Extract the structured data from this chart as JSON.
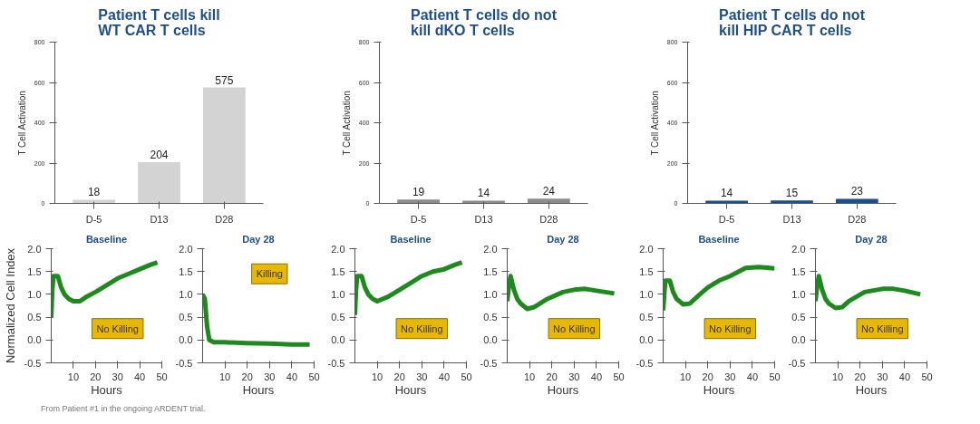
{
  "chart_data": [
    {
      "type": "bar",
      "title": "Patient T cells kill WT CAR T cells",
      "ylabel": "T Cell Activation",
      "categories": [
        "D-5",
        "D13",
        "D28"
      ],
      "values": [
        18,
        204,
        575
      ],
      "color": "#d3d3d3",
      "ylim": [
        0,
        800
      ],
      "yticks": [
        0,
        200,
        400,
        600,
        800
      ],
      "data_labels": true
    },
    {
      "type": "bar",
      "title": "Patient T cells do not kill dKO T cells",
      "ylabel": "T Cell Activation",
      "categories": [
        "D-5",
        "D13",
        "D28"
      ],
      "values": [
        19,
        14,
        24
      ],
      "color": "#8c8c8c",
      "ylim": [
        0,
        800
      ],
      "yticks": [
        0,
        200,
        400,
        600,
        800
      ],
      "data_labels": true
    },
    {
      "type": "bar",
      "title": "Patient T cells do not kill HIP CAR T cells",
      "ylabel": "T Cell Activation",
      "categories": [
        "D-5",
        "D13",
        "D28"
      ],
      "values": [
        14,
        15,
        23
      ],
      "color": "#1f4e8c",
      "ylim": [
        0,
        800
      ],
      "yticks": [
        0,
        200,
        400,
        600,
        800
      ],
      "data_labels": true
    },
    {
      "type": "line",
      "title": "Baseline",
      "xlabel": "Hours",
      "ylabel": "Normalized Cell Index",
      "color": "#1e8a1e",
      "x": [
        0,
        0.5,
        1,
        3,
        4.5,
        6,
        8,
        10,
        13,
        16,
        20,
        25,
        30,
        35,
        40,
        45,
        48
      ],
      "values": [
        0.5,
        1.1,
        1.4,
        1.4,
        1.15,
        1.0,
        0.9,
        0.85,
        0.85,
        0.95,
        1.05,
        1.2,
        1.35,
        1.45,
        1.55,
        1.65,
        1.7
      ],
      "xlim": [
        0,
        50
      ],
      "ylim": [
        -0.5,
        2.0
      ],
      "xticks": [
        10,
        20,
        30,
        40,
        50
      ],
      "yticks": [
        {
          "value": -0.5,
          "label": "-0.5"
        },
        {
          "value": 0,
          "label": "0.0"
        },
        {
          "value": 0.5,
          "label": "0.5"
        },
        {
          "value": 1,
          "label": "1.0"
        },
        {
          "value": 1.5,
          "label": "1.5"
        },
        {
          "value": 2,
          "label": "2.0"
        }
      ],
      "annotations": [
        "No Killing",
        "From Patient #1 in the ongoing ARDENT trial."
      ]
    },
    {
      "type": "line",
      "title": "Day 28",
      "xlabel": "Hours",
      "color": "#1e8a1e",
      "x": [
        0,
        1,
        2,
        3,
        5,
        10,
        20,
        30,
        40,
        48
      ],
      "values": [
        1.0,
        0.9,
        0.3,
        0.0,
        -0.05,
        -0.05,
        -0.07,
        -0.08,
        -0.1,
        -0.1
      ],
      "xlim": [
        0,
        50
      ],
      "ylim": [
        -0.5,
        2.0
      ],
      "xticks": [
        10,
        20,
        30,
        40,
        50
      ],
      "yticks": [
        {
          "value": -0.5,
          "label": "-0.5"
        },
        {
          "value": 0,
          "label": "0.0"
        },
        {
          "value": 0.5,
          "label": "0.5"
        },
        {
          "value": 1,
          "label": "1.0"
        },
        {
          "value": 1.5,
          "label": "1.5"
        },
        {
          "value": 2,
          "label": "2.0"
        }
      ],
      "annotations": [
        "Killing"
      ]
    },
    {
      "type": "line",
      "title": "Baseline",
      "xlabel": "Hours",
      "color": "#1e8a1e",
      "x": [
        0,
        0.5,
        1,
        3,
        4.5,
        6,
        8,
        10,
        15,
        20,
        25,
        30,
        35,
        40,
        45,
        48
      ],
      "values": [
        0.55,
        1.1,
        1.4,
        1.4,
        1.15,
        1.0,
        0.9,
        0.85,
        0.95,
        1.1,
        1.25,
        1.4,
        1.5,
        1.55,
        1.65,
        1.7
      ],
      "xlim": [
        0,
        50
      ],
      "ylim": [
        -0.5,
        2.0
      ],
      "xticks": [
        10,
        20,
        30,
        40,
        50
      ],
      "yticks": [
        {
          "value": -0.5,
          "label": "-0.5"
        },
        {
          "value": 0,
          "label": "0.0"
        },
        {
          "value": 0.5,
          "label": "0.5"
        },
        {
          "value": 1,
          "label": "1.0"
        },
        {
          "value": 1.5,
          "label": "1.5"
        },
        {
          "value": 2,
          "label": "2.0"
        }
      ],
      "annotations": [
        "No Killing"
      ]
    },
    {
      "type": "line",
      "title": "Day 28",
      "xlabel": "Hours",
      "color": "#1e8a1e",
      "x": [
        0,
        0.8,
        1.5,
        3,
        4.5,
        6,
        9,
        12,
        18,
        25,
        30,
        35,
        40,
        48
      ],
      "values": [
        0.85,
        1.2,
        1.4,
        1.1,
        0.9,
        0.8,
        0.68,
        0.72,
        0.9,
        1.05,
        1.1,
        1.12,
        1.08,
        1.02
      ],
      "xlim": [
        0,
        50
      ],
      "ylim": [
        -0.5,
        2.0
      ],
      "xticks": [
        10,
        20,
        30,
        40,
        50
      ],
      "yticks": [
        {
          "value": -0.5,
          "label": "-0.5"
        },
        {
          "value": 0,
          "label": "0.0"
        },
        {
          "value": 0.5,
          "label": "0.5"
        },
        {
          "value": 1,
          "label": "1.0"
        },
        {
          "value": 1.5,
          "label": "1.5"
        },
        {
          "value": 2,
          "label": "2.0"
        }
      ],
      "annotations": [
        "No Killing"
      ]
    },
    {
      "type": "line",
      "title": "Baseline",
      "xlabel": "Hours",
      "color": "#1e8a1e",
      "x": [
        0,
        0.5,
        1,
        3,
        4.5,
        6,
        9,
        12,
        16,
        20,
        25,
        30,
        37,
        43,
        50
      ],
      "values": [
        0.65,
        1.0,
        1.3,
        1.3,
        1.05,
        0.9,
        0.78,
        0.8,
        0.98,
        1.15,
        1.3,
        1.4,
        1.58,
        1.6,
        1.57
      ],
      "xlim": [
        0,
        50
      ],
      "ylim": [
        -0.5,
        2.0
      ],
      "xticks": [
        10,
        20,
        30,
        40,
        50
      ],
      "yticks": [
        {
          "value": -0.5,
          "label": "-0.5"
        },
        {
          "value": 0,
          "label": "0.0"
        },
        {
          "value": 0.5,
          "label": "0.5"
        },
        {
          "value": 1,
          "label": "1.0"
        },
        {
          "value": 1.5,
          "label": "1.5"
        },
        {
          "value": 2,
          "label": "2.0"
        }
      ],
      "annotations": [
        "No Killing"
      ]
    },
    {
      "type": "line",
      "title": "Day 28",
      "xlabel": "Hours",
      "color": "#1e8a1e",
      "x": [
        0,
        0.8,
        1.5,
        3,
        4.5,
        6,
        9,
        12,
        15,
        22,
        30,
        35,
        40,
        47
      ],
      "values": [
        0.85,
        1.2,
        1.4,
        1.1,
        0.9,
        0.8,
        0.7,
        0.72,
        0.85,
        1.05,
        1.12,
        1.12,
        1.08,
        1.0
      ],
      "xlim": [
        0,
        50
      ],
      "ylim": [
        -0.5,
        2.0
      ],
      "xticks": [
        10,
        20,
        30,
        40,
        50
      ],
      "yticks": [
        {
          "value": -0.5,
          "label": "-0.5"
        },
        {
          "value": 0,
          "label": "0.0"
        },
        {
          "value": 0.5,
          "label": "0.5"
        },
        {
          "value": 1,
          "label": "1.0"
        },
        {
          "value": 1.5,
          "label": "1.5"
        },
        {
          "value": 2,
          "label": "2.0"
        }
      ],
      "annotations": [
        "No Killing"
      ]
    }
  ]
}
